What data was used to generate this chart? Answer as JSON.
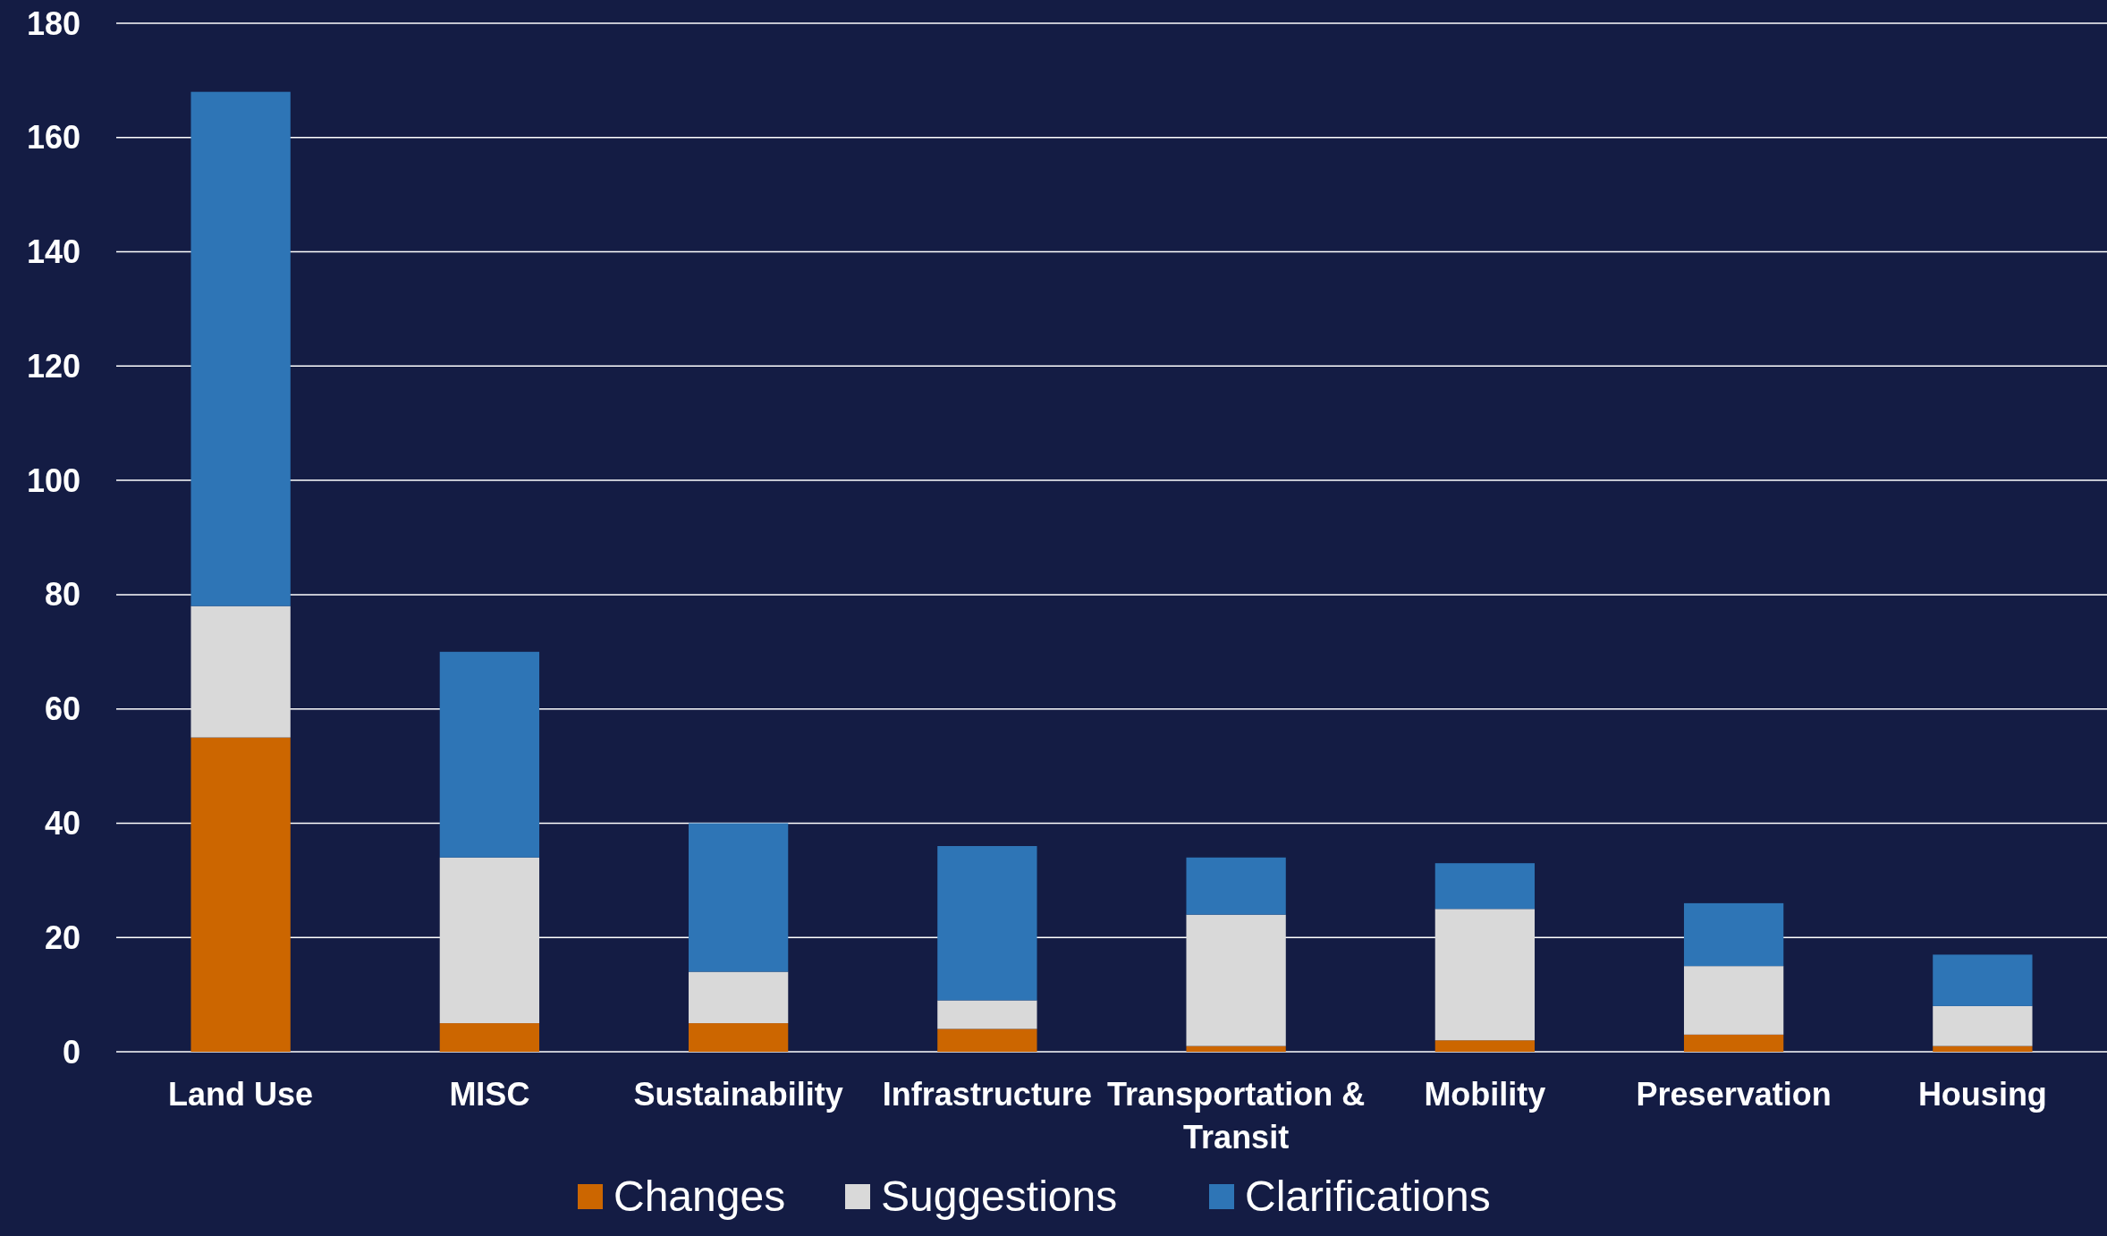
{
  "chart_data": {
    "type": "bar",
    "stacked": true,
    "categories": [
      "Land Use",
      "MISC",
      "Sustainability",
      "Infrastructure",
      "Transportation & Transit",
      "Mobility",
      "Preservation",
      "Housing"
    ],
    "series": [
      {
        "name": "Changes",
        "color": "#cc6600",
        "values": [
          55,
          5,
          5,
          4,
          1,
          2,
          3,
          1
        ]
      },
      {
        "name": "Suggestions",
        "color": "#d9d9d9",
        "values": [
          23,
          29,
          9,
          5,
          23,
          23,
          12,
          7
        ]
      },
      {
        "name": "Clarifications",
        "color": "#2e75b6",
        "values": [
          90,
          36,
          26,
          27,
          10,
          8,
          11,
          9
        ]
      }
    ],
    "ylim": [
      0,
      180
    ],
    "yticks": [
      0,
      20,
      40,
      60,
      80,
      100,
      120,
      140,
      160,
      180
    ],
    "grid": "y",
    "legend": "bottom"
  }
}
